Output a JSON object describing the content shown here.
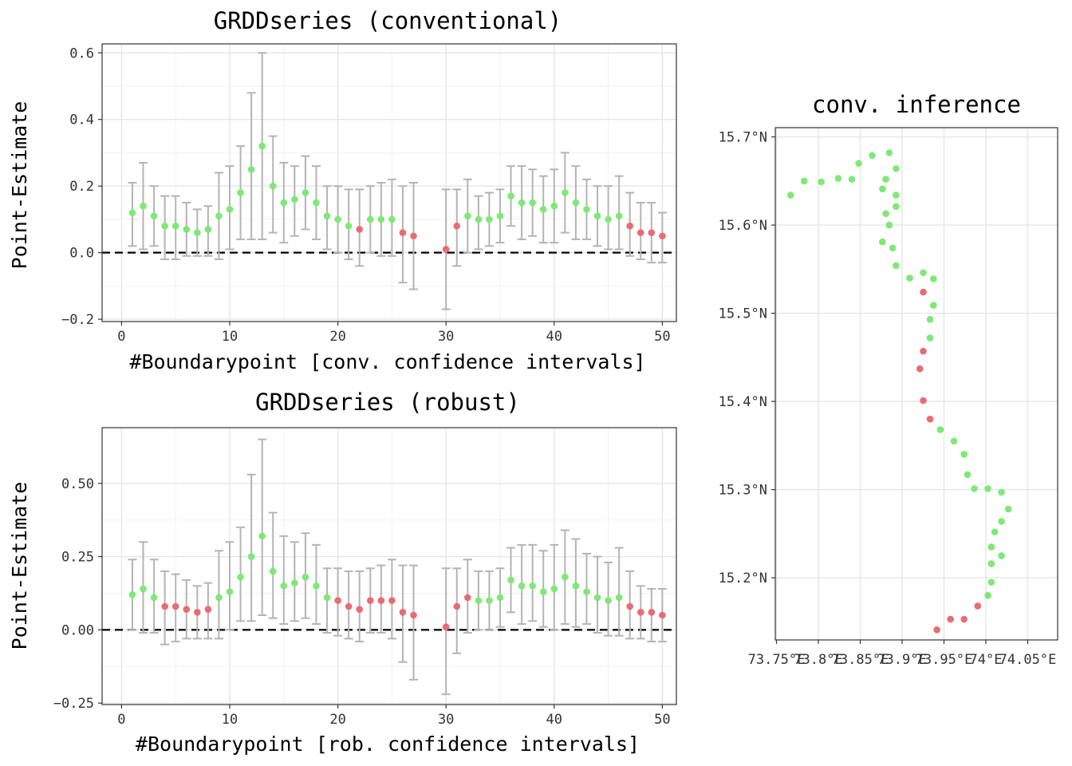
{
  "colors": {
    "significant": "#7cea74",
    "not_significant": "#ea6b73",
    "error_bar": "#b4b4b4",
    "grid_major": "#e5e5e5",
    "grid_minor": "#f2f2f2",
    "panel_border": "#333333",
    "zero_line": "#000000"
  },
  "chart_data": [
    {
      "id": "conventional",
      "type": "scatter",
      "title": "GRDDseries (conventional)",
      "xlabel": "#Boundarypoint [conv. confidence intervals]",
      "ylabel": "Point-Estimate",
      "xlim": [
        -1.8,
        51.3
      ],
      "ylim": [
        -0.207,
        0.627
      ],
      "x_ticks": [
        0,
        10,
        20,
        30,
        40,
        50
      ],
      "x_tick_labels": [
        "0",
        "10",
        "20",
        "30",
        "40",
        "50"
      ],
      "y_ticks": [
        -0.2,
        0.0,
        0.2,
        0.4,
        0.6
      ],
      "y_tick_labels": [
        "-0.2",
        "0.0",
        "0.2",
        "0.4",
        "0.6"
      ],
      "hline": 0,
      "grid": true,
      "points": [
        {
          "x": 1,
          "y": 0.12,
          "lo": 0.02,
          "hi": 0.21,
          "sig": true
        },
        {
          "x": 2,
          "y": 0.14,
          "lo": 0.01,
          "hi": 0.27,
          "sig": true
        },
        {
          "x": 3,
          "y": 0.11,
          "lo": 0.02,
          "hi": 0.2,
          "sig": true
        },
        {
          "x": 4,
          "y": 0.08,
          "lo": -0.02,
          "hi": 0.17,
          "sig": true
        },
        {
          "x": 5,
          "y": 0.08,
          "lo": -0.02,
          "hi": 0.17,
          "sig": true
        },
        {
          "x": 6,
          "y": 0.07,
          "lo": -0.01,
          "hi": 0.15,
          "sig": true
        },
        {
          "x": 7,
          "y": 0.06,
          "lo": -0.01,
          "hi": 0.13,
          "sig": true
        },
        {
          "x": 8,
          "y": 0.07,
          "lo": -0.01,
          "hi": 0.14,
          "sig": true
        },
        {
          "x": 9,
          "y": 0.11,
          "lo": -0.02,
          "hi": 0.24,
          "sig": true
        },
        {
          "x": 10,
          "y": 0.13,
          "lo": 0.01,
          "hi": 0.26,
          "sig": true
        },
        {
          "x": 11,
          "y": 0.18,
          "lo": 0.04,
          "hi": 0.32,
          "sig": true
        },
        {
          "x": 12,
          "y": 0.25,
          "lo": 0.04,
          "hi": 0.48,
          "sig": true
        },
        {
          "x": 13,
          "y": 0.32,
          "lo": 0.04,
          "hi": 0.6,
          "sig": true
        },
        {
          "x": 14,
          "y": 0.2,
          "lo": 0.06,
          "hi": 0.35,
          "sig": true
        },
        {
          "x": 15,
          "y": 0.15,
          "lo": 0.03,
          "hi": 0.27,
          "sig": true
        },
        {
          "x": 16,
          "y": 0.16,
          "lo": 0.05,
          "hi": 0.26,
          "sig": true
        },
        {
          "x": 17,
          "y": 0.18,
          "lo": 0.07,
          "hi": 0.29,
          "sig": true
        },
        {
          "x": 18,
          "y": 0.15,
          "lo": 0.04,
          "hi": 0.26,
          "sig": true
        },
        {
          "x": 19,
          "y": 0.11,
          "lo": 0.01,
          "hi": 0.2,
          "sig": true
        },
        {
          "x": 20,
          "y": 0.1,
          "lo": 0.0,
          "hi": 0.2,
          "sig": true
        },
        {
          "x": 21,
          "y": 0.08,
          "lo": -0.02,
          "hi": 0.19,
          "sig": true
        },
        {
          "x": 22,
          "y": 0.07,
          "lo": -0.04,
          "hi": 0.19,
          "sig": false
        },
        {
          "x": 23,
          "y": 0.1,
          "lo": 0.0,
          "hi": 0.2,
          "sig": true
        },
        {
          "x": 24,
          "y": 0.1,
          "lo": -0.01,
          "hi": 0.21,
          "sig": true
        },
        {
          "x": 25,
          "y": 0.1,
          "lo": -0.01,
          "hi": 0.22,
          "sig": true
        },
        {
          "x": 26,
          "y": 0.06,
          "lo": -0.09,
          "hi": 0.2,
          "sig": false
        },
        {
          "x": 27,
          "y": 0.05,
          "lo": -0.11,
          "hi": 0.21,
          "sig": false
        },
        {
          "x": 30,
          "y": 0.01,
          "lo": -0.17,
          "hi": 0.19,
          "sig": false
        },
        {
          "x": 31,
          "y": 0.08,
          "lo": -0.04,
          "hi": 0.19,
          "sig": false
        },
        {
          "x": 32,
          "y": 0.11,
          "lo": 0.0,
          "hi": 0.22,
          "sig": true
        },
        {
          "x": 33,
          "y": 0.1,
          "lo": 0.01,
          "hi": 0.17,
          "sig": true
        },
        {
          "x": 34,
          "y": 0.1,
          "lo": 0.02,
          "hi": 0.18,
          "sig": true
        },
        {
          "x": 35,
          "y": 0.11,
          "lo": 0.03,
          "hi": 0.19,
          "sig": true
        },
        {
          "x": 36,
          "y": 0.17,
          "lo": 0.08,
          "hi": 0.26,
          "sig": true
        },
        {
          "x": 37,
          "y": 0.15,
          "lo": 0.04,
          "hi": 0.26,
          "sig": true
        },
        {
          "x": 38,
          "y": 0.15,
          "lo": 0.05,
          "hi": 0.25,
          "sig": true
        },
        {
          "x": 39,
          "y": 0.13,
          "lo": 0.03,
          "hi": 0.23,
          "sig": true
        },
        {
          "x": 40,
          "y": 0.14,
          "lo": 0.03,
          "hi": 0.25,
          "sig": true
        },
        {
          "x": 41,
          "y": 0.18,
          "lo": 0.06,
          "hi": 0.3,
          "sig": true
        },
        {
          "x": 42,
          "y": 0.15,
          "lo": 0.04,
          "hi": 0.26,
          "sig": true
        },
        {
          "x": 43,
          "y": 0.13,
          "lo": 0.04,
          "hi": 0.22,
          "sig": true
        },
        {
          "x": 44,
          "y": 0.11,
          "lo": 0.02,
          "hi": 0.2,
          "sig": true
        },
        {
          "x": 45,
          "y": 0.1,
          "lo": 0.01,
          "hi": 0.2,
          "sig": true
        },
        {
          "x": 46,
          "y": 0.11,
          "lo": 0.01,
          "hi": 0.23,
          "sig": true
        },
        {
          "x": 47,
          "y": 0.08,
          "lo": -0.01,
          "hi": 0.18,
          "sig": false
        },
        {
          "x": 48,
          "y": 0.06,
          "lo": -0.02,
          "hi": 0.15,
          "sig": false
        },
        {
          "x": 49,
          "y": 0.06,
          "lo": -0.03,
          "hi": 0.15,
          "sig": false
        },
        {
          "x": 50,
          "y": 0.05,
          "lo": -0.03,
          "hi": 0.12,
          "sig": false
        }
      ]
    },
    {
      "id": "robust",
      "type": "scatter",
      "title": "GRDDseries (robust)",
      "xlabel": "#Boundarypoint [rob. confidence intervals]",
      "ylabel": "Point-Estimate",
      "xlim": [
        -1.8,
        51.3
      ],
      "ylim": [
        -0.255,
        0.69
      ],
      "x_ticks": [
        0,
        10,
        20,
        30,
        40,
        50
      ],
      "x_tick_labels": [
        "0",
        "10",
        "20",
        "30",
        "40",
        "50"
      ],
      "y_ticks": [
        -0.25,
        0.0,
        0.25,
        0.5
      ],
      "y_tick_labels": [
        "-0.25",
        "0.00",
        "0.25",
        "0.50"
      ],
      "hline": 0,
      "grid": true,
      "points": [
        {
          "x": 1,
          "y": 0.12,
          "lo": 0.0,
          "hi": 0.24,
          "sig": true
        },
        {
          "x": 2,
          "y": 0.14,
          "lo": -0.01,
          "hi": 0.3,
          "sig": true
        },
        {
          "x": 3,
          "y": 0.11,
          "lo": -0.01,
          "hi": 0.24,
          "sig": true
        },
        {
          "x": 4,
          "y": 0.08,
          "lo": -0.05,
          "hi": 0.2,
          "sig": false
        },
        {
          "x": 5,
          "y": 0.08,
          "lo": -0.04,
          "hi": 0.19,
          "sig": false
        },
        {
          "x": 6,
          "y": 0.07,
          "lo": -0.03,
          "hi": 0.17,
          "sig": false
        },
        {
          "x": 7,
          "y": 0.06,
          "lo": -0.03,
          "hi": 0.15,
          "sig": false
        },
        {
          "x": 8,
          "y": 0.07,
          "lo": -0.03,
          "hi": 0.16,
          "sig": false
        },
        {
          "x": 9,
          "y": 0.11,
          "lo": -0.03,
          "hi": 0.27,
          "sig": true
        },
        {
          "x": 10,
          "y": 0.13,
          "lo": 0.0,
          "hi": 0.3,
          "sig": true
        },
        {
          "x": 11,
          "y": 0.18,
          "lo": 0.03,
          "hi": 0.35,
          "sig": true
        },
        {
          "x": 12,
          "y": 0.25,
          "lo": 0.03,
          "hi": 0.53,
          "sig": true
        },
        {
          "x": 13,
          "y": 0.32,
          "lo": 0.05,
          "hi": 0.65,
          "sig": true
        },
        {
          "x": 14,
          "y": 0.2,
          "lo": 0.04,
          "hi": 0.4,
          "sig": true
        },
        {
          "x": 15,
          "y": 0.15,
          "lo": 0.02,
          "hi": 0.32,
          "sig": true
        },
        {
          "x": 16,
          "y": 0.16,
          "lo": 0.03,
          "hi": 0.3,
          "sig": true
        },
        {
          "x": 17,
          "y": 0.18,
          "lo": 0.04,
          "hi": 0.33,
          "sig": true
        },
        {
          "x": 18,
          "y": 0.15,
          "lo": 0.02,
          "hi": 0.29,
          "sig": true
        },
        {
          "x": 19,
          "y": 0.11,
          "lo": -0.01,
          "hi": 0.21,
          "sig": true
        },
        {
          "x": 20,
          "y": 0.1,
          "lo": -0.02,
          "hi": 0.21,
          "sig": false
        },
        {
          "x": 21,
          "y": 0.08,
          "lo": -0.03,
          "hi": 0.2,
          "sig": false
        },
        {
          "x": 22,
          "y": 0.07,
          "lo": -0.04,
          "hi": 0.2,
          "sig": false
        },
        {
          "x": 23,
          "y": 0.1,
          "lo": -0.01,
          "hi": 0.21,
          "sig": false
        },
        {
          "x": 24,
          "y": 0.1,
          "lo": -0.01,
          "hi": 0.22,
          "sig": false
        },
        {
          "x": 25,
          "y": 0.1,
          "lo": -0.03,
          "hi": 0.24,
          "sig": false
        },
        {
          "x": 26,
          "y": 0.06,
          "lo": -0.11,
          "hi": 0.22,
          "sig": false
        },
        {
          "x": 27,
          "y": 0.05,
          "lo": -0.17,
          "hi": 0.22,
          "sig": false
        },
        {
          "x": 30,
          "y": 0.01,
          "lo": -0.22,
          "hi": 0.21,
          "sig": false
        },
        {
          "x": 31,
          "y": 0.08,
          "lo": -0.08,
          "hi": 0.21,
          "sig": false
        },
        {
          "x": 32,
          "y": 0.11,
          "lo": -0.01,
          "hi": 0.24,
          "sig": false
        },
        {
          "x": 33,
          "y": 0.1,
          "lo": 0.0,
          "hi": 0.2,
          "sig": true
        },
        {
          "x": 34,
          "y": 0.1,
          "lo": 0.0,
          "hi": 0.2,
          "sig": true
        },
        {
          "x": 35,
          "y": 0.11,
          "lo": 0.01,
          "hi": 0.21,
          "sig": true
        },
        {
          "x": 36,
          "y": 0.17,
          "lo": 0.06,
          "hi": 0.28,
          "sig": true
        },
        {
          "x": 37,
          "y": 0.15,
          "lo": 0.02,
          "hi": 0.29,
          "sig": true
        },
        {
          "x": 38,
          "y": 0.15,
          "lo": 0.03,
          "hi": 0.29,
          "sig": true
        },
        {
          "x": 39,
          "y": 0.13,
          "lo": 0.01,
          "hi": 0.27,
          "sig": true
        },
        {
          "x": 40,
          "y": 0.14,
          "lo": 0.0,
          "hi": 0.29,
          "sig": true
        },
        {
          "x": 41,
          "y": 0.18,
          "lo": 0.02,
          "hi": 0.34,
          "sig": true
        },
        {
          "x": 42,
          "y": 0.15,
          "lo": 0.01,
          "hi": 0.31,
          "sig": true
        },
        {
          "x": 43,
          "y": 0.13,
          "lo": 0.02,
          "hi": 0.26,
          "sig": true
        },
        {
          "x": 44,
          "y": 0.11,
          "lo": -0.01,
          "hi": 0.25,
          "sig": true
        },
        {
          "x": 45,
          "y": 0.1,
          "lo": -0.02,
          "hi": 0.23,
          "sig": true
        },
        {
          "x": 46,
          "y": 0.11,
          "lo": -0.02,
          "hi": 0.28,
          "sig": true
        },
        {
          "x": 47,
          "y": 0.08,
          "lo": -0.03,
          "hi": 0.2,
          "sig": false
        },
        {
          "x": 48,
          "y": 0.06,
          "lo": -0.03,
          "hi": 0.15,
          "sig": false
        },
        {
          "x": 49,
          "y": 0.06,
          "lo": -0.04,
          "hi": 0.14,
          "sig": false
        },
        {
          "x": 50,
          "y": 0.05,
          "lo": -0.04,
          "hi": 0.14,
          "sig": false
        }
      ]
    },
    {
      "id": "map",
      "type": "scatter",
      "title": "conv. inference",
      "xlabel": "",
      "ylabel": "",
      "xlim": [
        73.7525,
        73.8355
      ],
      "ylim": [
        15.1295,
        15.7105
      ],
      "x_ticks": [
        73.75,
        73.8,
        73.85,
        73.9,
        73.95,
        74.0,
        74.05
      ],
      "x_tick_labels": [
        "73.75°E",
        "73.8°E",
        "73.85°E",
        "73.9°E",
        "73.95°E",
        "74°E",
        "74.05°E"
      ],
      "x_tick_labels_drawn": [
        "73.75°E",
        "73.8°E",
        "73.85°E",
        "73.9°E",
        "73.95°E",
        "74°E",
        "74.05°E"
      ],
      "y_ticks": [
        15.2,
        15.3,
        15.4,
        15.5,
        15.6,
        15.7
      ],
      "y_tick_labels": [
        "15.2°N",
        "15.3°N",
        "15.4°N",
        "15.5°N",
        "15.6°N",
        "15.7°N"
      ],
      "grid": true,
      "points": [
        {
          "lon": 73.757,
          "lat": 15.634,
          "sig": true
        },
        {
          "lon": 73.761,
          "lat": 15.65,
          "sig": true
        },
        {
          "lon": 73.766,
          "lat": 15.649,
          "sig": true
        },
        {
          "lon": 73.771,
          "lat": 15.653,
          "sig": true
        },
        {
          "lon": 73.775,
          "lat": 15.652,
          "sig": true
        },
        {
          "lon": 73.777,
          "lat": 15.67,
          "sig": true
        },
        {
          "lon": 73.781,
          "lat": 15.679,
          "sig": true
        },
        {
          "lon": 73.786,
          "lat": 15.682,
          "sig": true
        },
        {
          "lon": 73.788,
          "lat": 15.664,
          "sig": true
        },
        {
          "lon": 73.785,
          "lat": 15.652,
          "sig": true
        },
        {
          "lon": 73.784,
          "lat": 15.641,
          "sig": true
        },
        {
          "lon": 73.788,
          "lat": 15.634,
          "sig": true
        },
        {
          "lon": 73.788,
          "lat": 15.621,
          "sig": true
        },
        {
          "lon": 73.785,
          "lat": 15.613,
          "sig": true
        },
        {
          "lon": 73.786,
          "lat": 15.6,
          "sig": true
        },
        {
          "lon": 73.784,
          "lat": 15.581,
          "sig": true
        },
        {
          "lon": 73.787,
          "lat": 15.574,
          "sig": true
        },
        {
          "lon": 73.788,
          "lat": 15.554,
          "sig": true
        },
        {
          "lon": 73.792,
          "lat": 15.54,
          "sig": true
        },
        {
          "lon": 73.796,
          "lat": 15.546,
          "sig": true
        },
        {
          "lon": 73.799,
          "lat": 15.539,
          "sig": true
        },
        {
          "lon": 73.796,
          "lat": 15.524,
          "sig": false
        },
        {
          "lon": 73.799,
          "lat": 15.509,
          "sig": true
        },
        {
          "lon": 73.798,
          "lat": 15.493,
          "sig": true
        },
        {
          "lon": 73.798,
          "lat": 15.472,
          "sig": true
        },
        {
          "lon": 73.796,
          "lat": 15.457,
          "sig": false
        },
        {
          "lon": 73.795,
          "lat": 15.437,
          "sig": false
        },
        {
          "lon": 73.796,
          "lat": 15.401,
          "sig": false
        },
        {
          "lon": 73.798,
          "lat": 15.38,
          "sig": false
        },
        {
          "lon": 73.801,
          "lat": 15.368,
          "sig": true
        },
        {
          "lon": 73.805,
          "lat": 15.355,
          "sig": true
        },
        {
          "lon": 73.808,
          "lat": 15.34,
          "sig": true
        },
        {
          "lon": 73.809,
          "lat": 15.317,
          "sig": true
        },
        {
          "lon": 73.811,
          "lat": 15.301,
          "sig": true
        },
        {
          "lon": 73.815,
          "lat": 15.301,
          "sig": true
        },
        {
          "lon": 73.819,
          "lat": 15.297,
          "sig": true
        },
        {
          "lon": 73.821,
          "lat": 15.278,
          "sig": true
        },
        {
          "lon": 73.819,
          "lat": 15.264,
          "sig": true
        },
        {
          "lon": 73.817,
          "lat": 15.252,
          "sig": true
        },
        {
          "lon": 73.819,
          "lat": 15.225,
          "sig": true
        },
        {
          "lon": 73.816,
          "lat": 15.235,
          "sig": true
        },
        {
          "lon": 73.816,
          "lat": 15.216,
          "sig": true
        },
        {
          "lon": 73.816,
          "lat": 15.195,
          "sig": true
        },
        {
          "lon": 73.815,
          "lat": 15.18,
          "sig": true
        },
        {
          "lon": 73.812,
          "lat": 15.168,
          "sig": false
        },
        {
          "lon": 73.808,
          "lat": 15.153,
          "sig": false
        },
        {
          "lon": 73.804,
          "lat": 15.153,
          "sig": false
        },
        {
          "lon": 73.8,
          "lat": 15.141,
          "sig": false
        }
      ]
    }
  ]
}
